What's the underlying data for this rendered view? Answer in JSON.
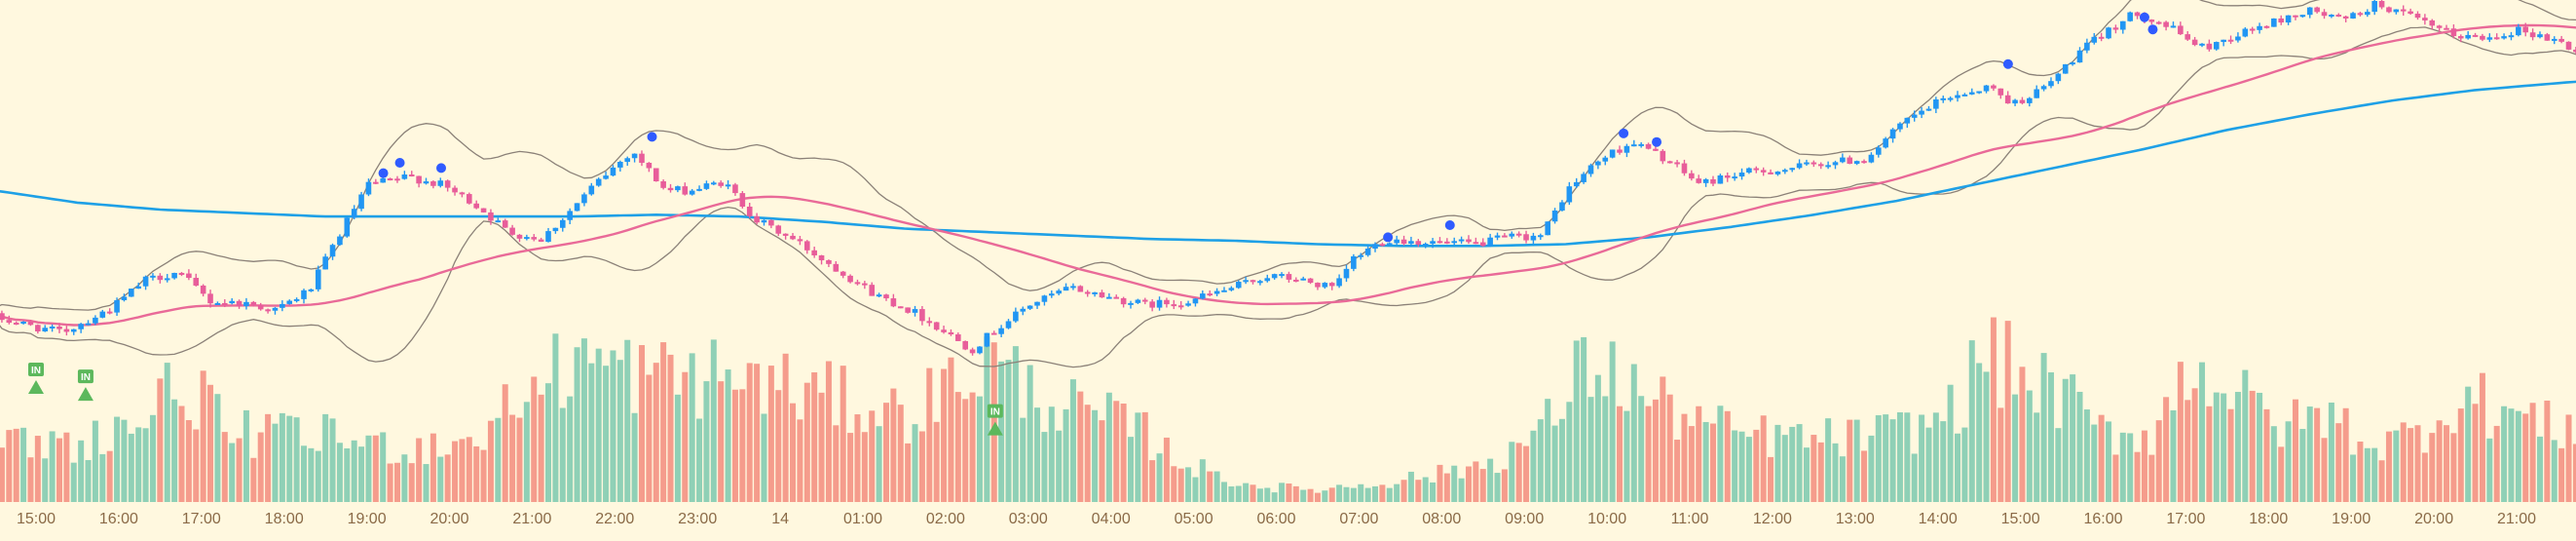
{
  "chart_data": {
    "type": "candlestick",
    "colors": {
      "background": "#fff8df",
      "up_candle": "#2196f3",
      "down_candle": "#e85d9a",
      "volume_up": "#8fd0b6",
      "volume_down": "#f59c8c",
      "ma_long": "#1ea0e6",
      "ma_mid": "#e96a98",
      "bands": "#8b8178",
      "dot_marker": "#2f5bff",
      "entry_marker": "#5cb85c",
      "tick_text": "#8a6a47"
    },
    "x_tick_labels": [
      "15:00",
      "16:00",
      "17:00",
      "18:00",
      "19:00",
      "20:00",
      "21:00",
      "22:00",
      "23:00",
      "14",
      "01:00",
      "02:00",
      "03:00",
      "04:00",
      "05:00",
      "06:00",
      "07:00",
      "08:00",
      "09:00",
      "10:00",
      "11:00",
      "12:00",
      "13:00",
      "14:00",
      "15:00",
      "16:00",
      "17:00",
      "18:00",
      "19:00",
      "20:00",
      "21:00"
    ],
    "entry_marker_text": "IN",
    "entry_markers": [
      {
        "hour": 15.0,
        "price": 0.06
      },
      {
        "hour": 15.6,
        "price": 0.02
      },
      {
        "hour": 26.6,
        "price": -0.18
      }
    ],
    "dot_markers": [
      {
        "hour": 19.2,
        "price": 1.12
      },
      {
        "hour": 19.4,
        "price": 1.18
      },
      {
        "hour": 19.9,
        "price": 1.15
      },
      {
        "hour": 22.45,
        "price": 1.33
      },
      {
        "hour": 31.35,
        "price": 0.75
      },
      {
        "hour": 32.1,
        "price": 0.82
      },
      {
        "hour": 34.2,
        "price": 1.35
      },
      {
        "hour": 34.6,
        "price": 1.3
      },
      {
        "hour": 38.85,
        "price": 1.75
      },
      {
        "hour": 40.5,
        "price": 2.02
      },
      {
        "hour": 40.6,
        "price": 1.95
      }
    ],
    "price_nodes": [
      [
        14.5,
        0.3
      ],
      [
        15.0,
        0.24
      ],
      [
        15.4,
        0.2
      ],
      [
        15.7,
        0.27
      ],
      [
        16.0,
        0.34
      ],
      [
        16.4,
        0.5
      ],
      [
        16.8,
        0.55
      ],
      [
        17.2,
        0.38
      ],
      [
        17.6,
        0.37
      ],
      [
        18.0,
        0.33
      ],
      [
        18.4,
        0.45
      ],
      [
        18.7,
        0.72
      ],
      [
        19.1,
        1.05
      ],
      [
        19.6,
        1.1
      ],
      [
        20.0,
        1.05
      ],
      [
        20.4,
        0.94
      ],
      [
        20.8,
        0.78
      ],
      [
        21.2,
        0.74
      ],
      [
        21.5,
        0.88
      ],
      [
        21.9,
        1.08
      ],
      [
        22.3,
        1.25
      ],
      [
        22.7,
        1.02
      ],
      [
        23.0,
        1.02
      ],
      [
        23.4,
        1.07
      ],
      [
        23.8,
        0.85
      ],
      [
        24.3,
        0.72
      ],
      [
        24.8,
        0.56
      ],
      [
        25.2,
        0.43
      ],
      [
        25.7,
        0.32
      ],
      [
        26.1,
        0.2
      ],
      [
        26.4,
        0.1
      ],
      [
        26.7,
        0.22
      ],
      [
        27.1,
        0.36
      ],
      [
        27.6,
        0.46
      ],
      [
        28.1,
        0.4
      ],
      [
        28.5,
        0.36
      ],
      [
        29.0,
        0.38
      ],
      [
        29.5,
        0.45
      ],
      [
        30.0,
        0.53
      ],
      [
        30.4,
        0.5
      ],
      [
        30.8,
        0.45
      ],
      [
        31.0,
        0.62
      ],
      [
        31.4,
        0.74
      ],
      [
        32.0,
        0.72
      ],
      [
        32.5,
        0.71
      ],
      [
        32.9,
        0.75
      ],
      [
        33.3,
        0.76
      ],
      [
        33.6,
        1.02
      ],
      [
        34.0,
        1.2
      ],
      [
        34.4,
        1.3
      ],
      [
        34.8,
        1.2
      ],
      [
        35.2,
        1.06
      ],
      [
        35.7,
        1.12
      ],
      [
        36.2,
        1.14
      ],
      [
        36.7,
        1.18
      ],
      [
        37.2,
        1.2
      ],
      [
        37.7,
        1.42
      ],
      [
        38.2,
        1.56
      ],
      [
        38.7,
        1.62
      ],
      [
        39.0,
        1.52
      ],
      [
        39.4,
        1.62
      ],
      [
        39.8,
        1.82
      ],
      [
        40.2,
        1.96
      ],
      [
        40.5,
        2.05
      ],
      [
        40.9,
        1.96
      ],
      [
        41.3,
        1.84
      ],
      [
        41.7,
        1.92
      ],
      [
        42.2,
        2.0
      ],
      [
        42.6,
        2.06
      ],
      [
        43.0,
        2.0
      ],
      [
        43.4,
        2.1
      ],
      [
        43.8,
        2.02
      ],
      [
        44.3,
        1.92
      ],
      [
        44.7,
        1.9
      ],
      [
        45.1,
        1.95
      ],
      [
        45.6,
        1.88
      ],
      [
        45.9,
        1.8
      ],
      [
        46.2,
        1.87
      ],
      [
        46.3,
        1.92
      ]
    ],
    "ma_long_nodes": [
      [
        14.5,
        1.02
      ],
      [
        15.5,
        0.95
      ],
      [
        16.5,
        0.91
      ],
      [
        17.5,
        0.89
      ],
      [
        18.5,
        0.87
      ],
      [
        19.5,
        0.87
      ],
      [
        20.5,
        0.87
      ],
      [
        21.5,
        0.87
      ],
      [
        22.5,
        0.88
      ],
      [
        23.5,
        0.87
      ],
      [
        24.5,
        0.84
      ],
      [
        25.5,
        0.8
      ],
      [
        26.5,
        0.78
      ],
      [
        27.5,
        0.76
      ],
      [
        28.5,
        0.74
      ],
      [
        29.5,
        0.73
      ],
      [
        30.5,
        0.71
      ],
      [
        31.5,
        0.7
      ],
      [
        32.5,
        0.7
      ],
      [
        33.5,
        0.71
      ],
      [
        34.5,
        0.75
      ],
      [
        35.5,
        0.81
      ],
      [
        36.5,
        0.88
      ],
      [
        37.5,
        0.96
      ],
      [
        38.5,
        1.06
      ],
      [
        39.5,
        1.16
      ],
      [
        40.5,
        1.26
      ],
      [
        41.5,
        1.37
      ],
      [
        42.5,
        1.46
      ],
      [
        43.5,
        1.54
      ],
      [
        44.5,
        1.6
      ],
      [
        45.5,
        1.64
      ],
      [
        46.3,
        1.67
      ]
    ],
    "volume_bands": [
      [
        14.5,
        18
      ],
      [
        15.5,
        19
      ],
      [
        16.3,
        26
      ],
      [
        16.8,
        40
      ],
      [
        17.3,
        22
      ],
      [
        18.5,
        21
      ],
      [
        19.5,
        17
      ],
      [
        20.3,
        20
      ],
      [
        20.8,
        32
      ],
      [
        21.5,
        46
      ],
      [
        22.5,
        40
      ],
      [
        23.5,
        40
      ],
      [
        24.5,
        34
      ],
      [
        25.5,
        28
      ],
      [
        26.0,
        36
      ],
      [
        26.5,
        46
      ],
      [
        27.0,
        36
      ],
      [
        27.7,
        28
      ],
      [
        28.3,
        24
      ],
      [
        28.8,
        14
      ],
      [
        29.3,
        8
      ],
      [
        29.8,
        5
      ],
      [
        30.5,
        4
      ],
      [
        31.2,
        6
      ],
      [
        32.0,
        9
      ],
      [
        32.6,
        13
      ],
      [
        33.2,
        22
      ],
      [
        33.8,
        46
      ],
      [
        34.5,
        33
      ],
      [
        35.0,
        27
      ],
      [
        35.5,
        22
      ],
      [
        36.5,
        20
      ],
      [
        37.2,
        21
      ],
      [
        37.8,
        24
      ],
      [
        38.2,
        30
      ],
      [
        38.6,
        48
      ],
      [
        39.0,
        40
      ],
      [
        39.5,
        34
      ],
      [
        40.0,
        22
      ],
      [
        40.6,
        22
      ],
      [
        41.1,
        46
      ],
      [
        41.6,
        34
      ],
      [
        42.2,
        24
      ],
      [
        42.7,
        28
      ],
      [
        43.3,
        18
      ],
      [
        43.8,
        22
      ],
      [
        44.3,
        34
      ],
      [
        45.0,
        28
      ],
      [
        45.5,
        23
      ],
      [
        46.3,
        32
      ]
    ]
  }
}
